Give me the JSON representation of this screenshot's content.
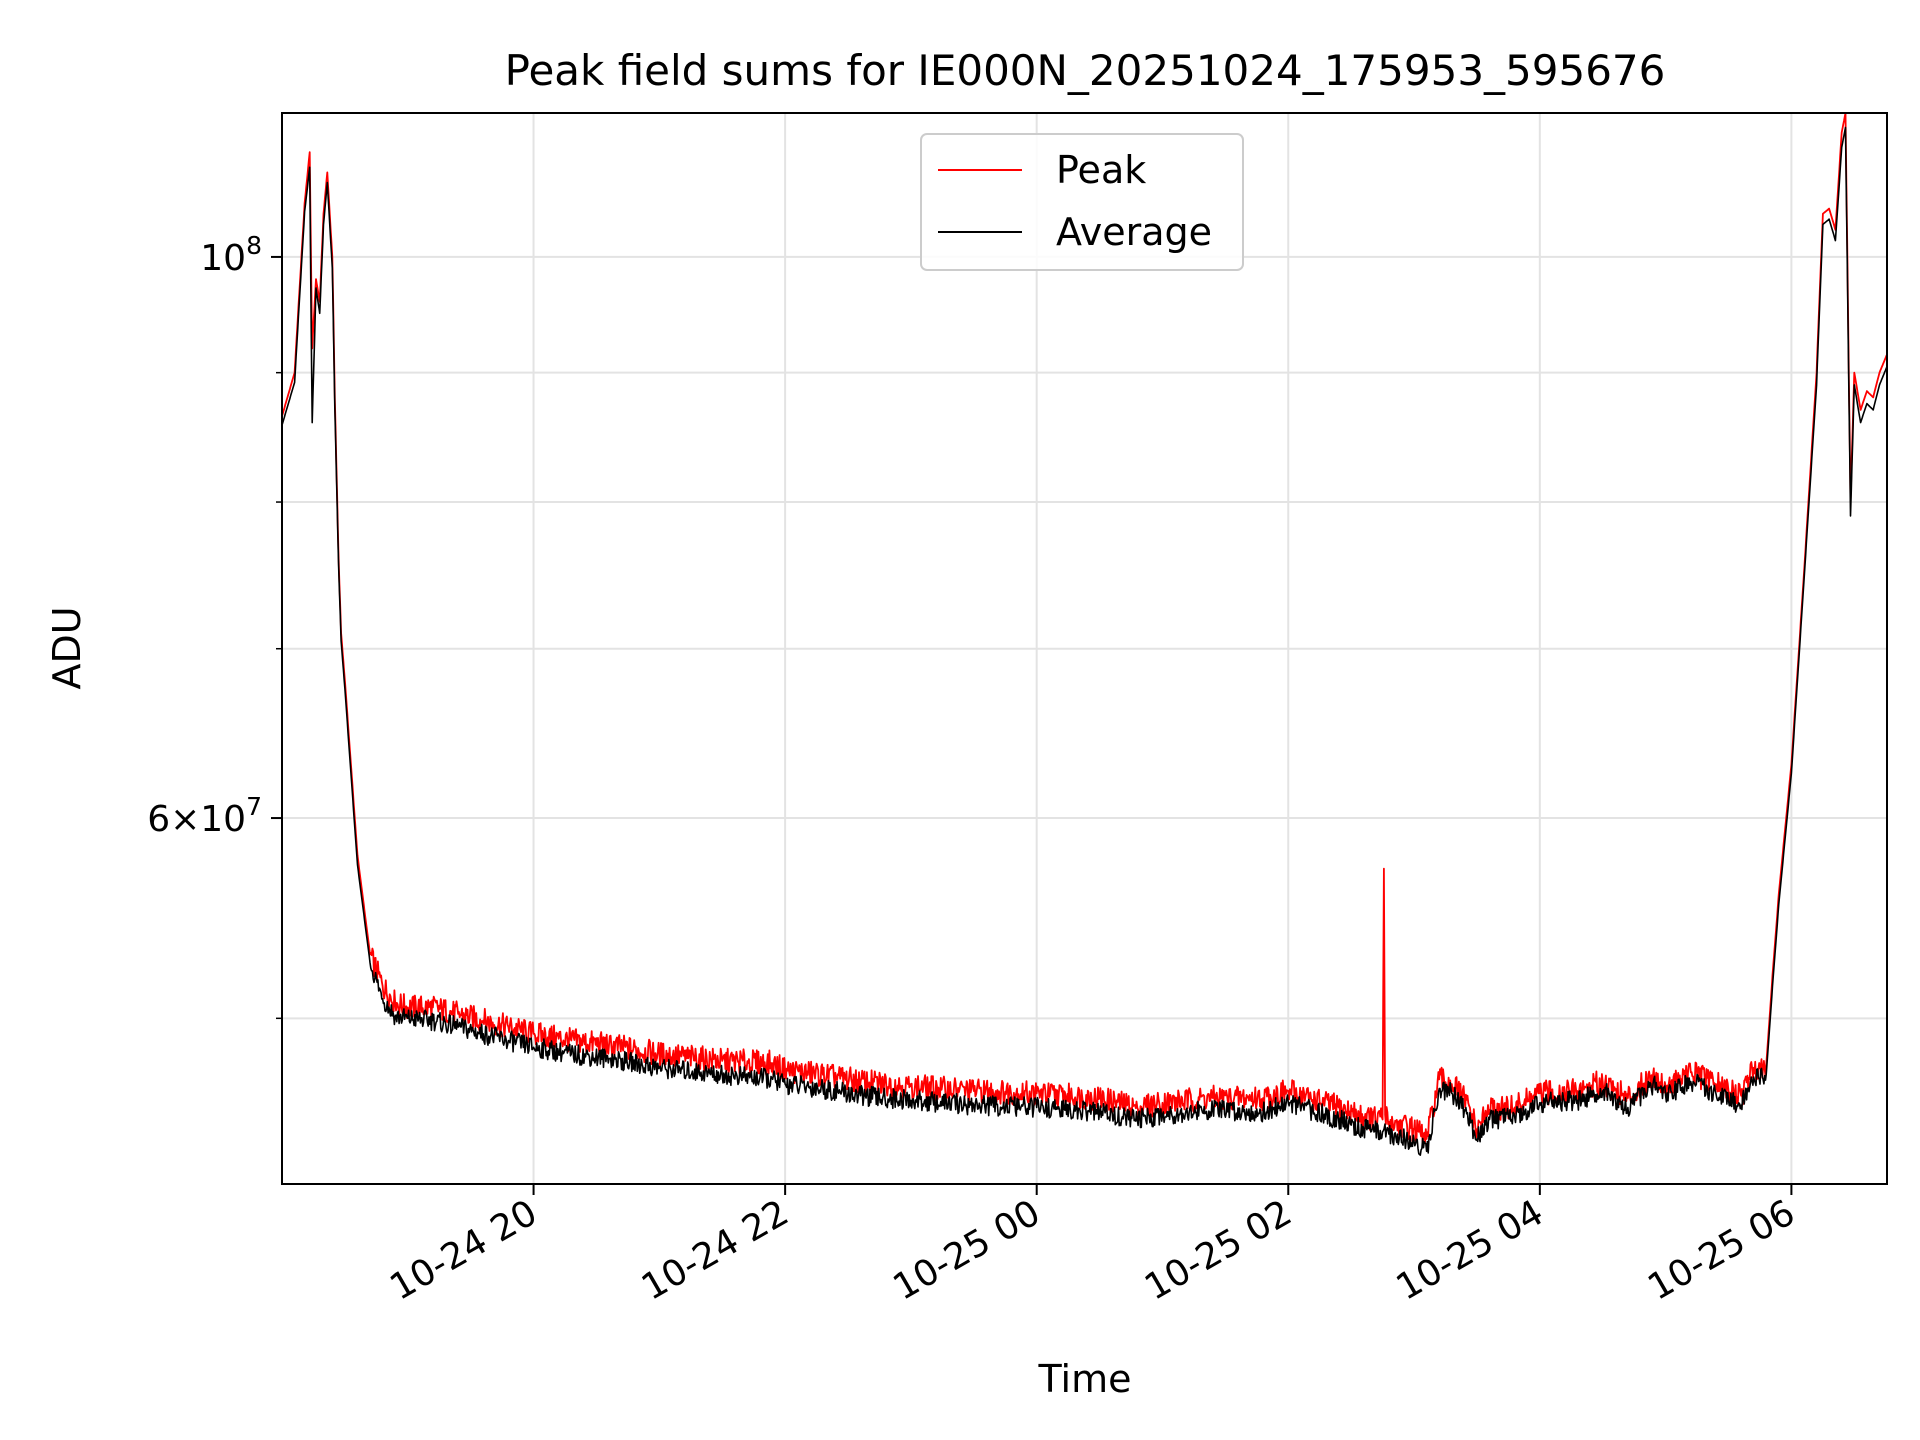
{
  "chart_data": {
    "type": "line",
    "title": "Peak field sums for IE000N_20251024_175953_595676",
    "xlabel": "Time",
    "ylabel": "ADU",
    "yscale": "log",
    "grid": true,
    "legend_placement": "upper-center",
    "x_unit": "hours since 2025-10-24 00:00",
    "xlim": [
      18.0,
      30.76
    ],
    "ylim": [
      43000000,
      114000000
    ],
    "x_ticks": [
      {
        "x": 20,
        "label": "10-24 20"
      },
      {
        "x": 22,
        "label": "10-24 22"
      },
      {
        "x": 24,
        "label": "10-25 00"
      },
      {
        "x": 26,
        "label": "10-25 02"
      },
      {
        "x": 28,
        "label": "10-25 04"
      },
      {
        "x": 30,
        "label": "10-25 06"
      }
    ],
    "y_major_ticks": [
      {
        "y": 100000000,
        "base": "10",
        "exp": "8"
      },
      {
        "y": 60000000,
        "coef": "6",
        "base": "10",
        "exp": "7"
      }
    ],
    "y_minor_ticks": [
      50000000,
      70000000,
      80000000,
      90000000
    ],
    "series": [
      {
        "name": "Peak",
        "color": "#ff0000",
        "x": [
          18.0,
          18.1,
          18.18,
          18.22,
          18.24,
          18.27,
          18.3,
          18.33,
          18.36,
          18.4,
          18.42,
          18.45,
          18.47,
          18.5,
          18.6,
          18.7,
          18.8,
          18.9,
          19.0,
          19.2,
          19.4,
          19.6,
          19.8,
          20.0,
          20.3,
          20.6,
          21.0,
          21.5,
          21.9,
          22.0,
          22.3,
          22.6,
          23.0,
          23.5,
          24.0,
          24.5,
          24.8,
          25.0,
          25.4,
          25.8,
          26.0,
          26.4,
          26.6,
          26.75,
          26.76,
          26.77,
          26.8,
          27.0,
          27.1,
          27.2,
          27.3,
          27.4,
          27.5,
          27.6,
          27.8,
          28.0,
          28.3,
          28.5,
          28.7,
          28.9,
          29.0,
          29.2,
          29.4,
          29.5,
          29.6,
          29.7,
          29.8,
          29.85,
          29.9,
          30.0,
          30.1,
          30.2,
          30.25,
          30.3,
          30.35,
          30.4,
          30.43,
          30.47,
          30.5,
          30.55,
          30.6,
          30.65,
          30.7,
          30.76
        ],
        "values": [
          86500000,
          90000000,
          105000000,
          110000000,
          92000000,
          98000000,
          96000000,
          104000000,
          108000000,
          100000000,
          88000000,
          76000000,
          71000000,
          68000000,
          58000000,
          53000000,
          51500000,
          50700000,
          50500000,
          50500000,
          50200000,
          49900000,
          49600000,
          49300000,
          49000000,
          48800000,
          48400000,
          48100000,
          48000000,
          47700000,
          47500000,
          47200000,
          47000000,
          46800000,
          46700000,
          46500000,
          46100000,
          46300000,
          46500000,
          46500000,
          46800000,
          46100000,
          45700000,
          45600000,
          57300000,
          45800000,
          45500000,
          45200000,
          44800000,
          47300000,
          47100000,
          46500000,
          45200000,
          46000000,
          46100000,
          46700000,
          46800000,
          47200000,
          46500000,
          47500000,
          47000000,
          47600000,
          47100000,
          46800000,
          46600000,
          47800000,
          47900000,
          52000000,
          56000000,
          63000000,
          75000000,
          90000000,
          104000000,
          104500000,
          102500000,
          112000000,
          114000000,
          80000000,
          90000000,
          87000000,
          88500000,
          88000000,
          90000000,
          91500000
        ]
      },
      {
        "name": "Average",
        "color": "#000000",
        "x": [
          18.0,
          18.1,
          18.18,
          18.22,
          18.24,
          18.27,
          18.3,
          18.33,
          18.36,
          18.4,
          18.42,
          18.45,
          18.47,
          18.5,
          18.6,
          18.7,
          18.8,
          18.9,
          19.0,
          19.2,
          19.4,
          19.6,
          19.8,
          20.0,
          20.3,
          20.6,
          21.0,
          21.5,
          21.9,
          22.0,
          22.3,
          22.6,
          23.0,
          23.5,
          24.0,
          24.5,
          24.8,
          25.0,
          25.4,
          25.8,
          26.0,
          26.4,
          26.6,
          26.75,
          26.8,
          27.0,
          27.1,
          27.2,
          27.3,
          27.4,
          27.5,
          27.6,
          27.8,
          28.0,
          28.3,
          28.5,
          28.7,
          28.9,
          29.0,
          29.2,
          29.4,
          29.5,
          29.6,
          29.7,
          29.8,
          29.85,
          29.9,
          30.0,
          30.1,
          30.2,
          30.25,
          30.3,
          30.35,
          30.4,
          30.43,
          30.47,
          30.5,
          30.55,
          30.6,
          30.65,
          30.7,
          30.76
        ],
        "values": [
          85800000,
          89200000,
          104200000,
          108500000,
          86000000,
          97200000,
          95000000,
          103000000,
          107000000,
          99000000,
          87200000,
          75500000,
          70500000,
          67500000,
          57500000,
          52600000,
          50900000,
          50100000,
          50000000,
          49900000,
          49600000,
          49300000,
          49000000,
          48700000,
          48400000,
          48200000,
          47800000,
          47500000,
          47300000,
          47100000,
          46900000,
          46600000,
          46400000,
          46200000,
          46100000,
          45900000,
          45600000,
          45800000,
          46000000,
          45900000,
          46300000,
          45600000,
          45200000,
          45100000,
          45000000,
          44700000,
          44300000,
          46900000,
          46700000,
          46000000,
          44800000,
          45600000,
          45700000,
          46300000,
          46400000,
          46800000,
          46100000,
          47100000,
          46600000,
          47200000,
          46700000,
          46400000,
          46200000,
          47400000,
          47500000,
          51500000,
          55500000,
          62500000,
          74500000,
          89000000,
          103000000,
          103500000,
          101500000,
          110500000,
          112500000,
          79000000,
          89000000,
          86000000,
          87500000,
          87000000,
          89000000,
          90500000
        ]
      }
    ]
  }
}
